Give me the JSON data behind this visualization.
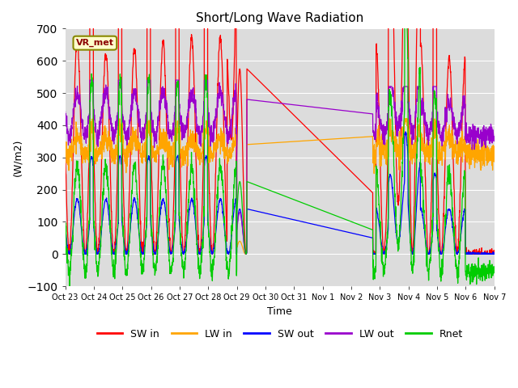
{
  "title": "Short/Long Wave Radiation",
  "ylabel": "(W/m2)",
  "xlabel": "Time",
  "annotation": "VR_met",
  "ylim": [
    -100,
    700
  ],
  "background_color": "#dcdcdc",
  "colors": {
    "SW in": "#ff0000",
    "LW in": "#ffa500",
    "SW out": "#0000ff",
    "LW out": "#9900cc",
    "Rnet": "#00cc00"
  },
  "xtick_labels": [
    "Oct 23",
    "Oct 24",
    "Oct 25",
    "Oct 26",
    "Oct 27",
    "Oct 28",
    "Oct 29",
    "Oct 30",
    "Oct 31",
    "Nov 1",
    "Nov 2",
    "Nov 3",
    "Nov 4",
    "Nov 5",
    "Nov 6",
    "Nov 7"
  ]
}
